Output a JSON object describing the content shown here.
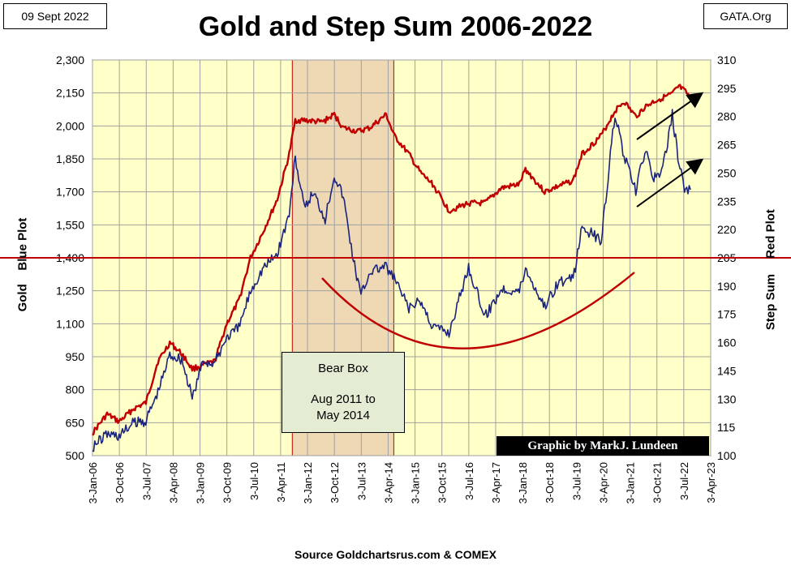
{
  "header": {
    "date": "09 Sept 2022",
    "site": "GATA.Org",
    "title": "Gold and Step Sum 2006-2022"
  },
  "footer": {
    "source": "Source  Goldchartsrus.com  & COMEX",
    "credit": "Graphic by MarkJ. Lundeen"
  },
  "annotation": {
    "box_line1": "Bear Box",
    "box_line2": "Aug 2011 to",
    "box_line3": "May 2014"
  },
  "colors": {
    "plot_bg": "#ffffc8",
    "grid": "#a0a0a0",
    "gold_series": "#1a237e",
    "stepsum_series": "#c00000",
    "bearbox_fill": "#eed9b4",
    "reference_line": "#c00000"
  },
  "chart_data": {
    "type": "line",
    "title": "Gold and Step Sum 2006-2022",
    "ylabel_left": "Gold    Blue Plot",
    "ylabel_right_1": "Red Plot",
    "ylabel_right_2": "Step Sum",
    "y_left_lim": [
      500,
      2300
    ],
    "y_left_ticks": [
      "500",
      "650",
      "800",
      "950",
      "1,100",
      "1,250",
      "1,400",
      "1,550",
      "1,700",
      "1,850",
      "2,000",
      "2,150",
      "2,300"
    ],
    "y_right_lim": [
      100,
      310
    ],
    "y_right_ticks": [
      "100",
      "115",
      "130",
      "145",
      "160",
      "175",
      "190",
      "205",
      "220",
      "235",
      "250",
      "265",
      "280",
      "295",
      "310"
    ],
    "x_ticks": [
      "3-Jan-06",
      "3-Oct-06",
      "3-Jul-07",
      "3-Apr-08",
      "3-Jan-09",
      "3-Oct-09",
      "3-Jul-10",
      "3-Apr-11",
      "3-Jan-12",
      "3-Oct-12",
      "3-Jul-13",
      "3-Apr-14",
      "3-Jan-15",
      "3-Oct-15",
      "3-Jul-16",
      "3-Apr-17",
      "3-Jan-18",
      "3-Oct-18",
      "3-Jul-19",
      "3-Apr-20",
      "3-Jan-21",
      "3-Oct-21",
      "3-Jul-22",
      "3-Apr-23"
    ],
    "x_range": [
      "2006-01-03",
      "2023-04-03"
    ],
    "grid": true,
    "bear_box": {
      "start": "2011-08-01",
      "end": "2014-05-31"
    },
    "reference_line_gold": 1400,
    "series": [
      {
        "axis": "left",
        "points": [
          [
            "2006-01-03",
            540
          ],
          [
            "2006-06-01",
            600
          ],
          [
            "2006-10-01",
            590
          ],
          [
            "2007-03-01",
            650
          ],
          [
            "2007-07-01",
            660
          ],
          [
            "2007-11-01",
            790
          ],
          [
            "2008-03-01",
            960
          ],
          [
            "2008-07-01",
            940
          ],
          [
            "2008-10-15",
            760
          ],
          [
            "2009-02-01",
            930
          ],
          [
            "2009-06-01",
            920
          ],
          [
            "2009-10-01",
            1040
          ],
          [
            "2010-02-01",
            1080
          ],
          [
            "2010-06-01",
            1250
          ],
          [
            "2010-10-01",
            1350
          ],
          [
            "2011-03-01",
            1420
          ],
          [
            "2011-07-01",
            1600
          ],
          [
            "2011-09-01",
            1860
          ],
          [
            "2011-12-01",
            1620
          ],
          [
            "2012-03-01",
            1700
          ],
          [
            "2012-07-01",
            1580
          ],
          [
            "2012-10-01",
            1780
          ],
          [
            "2013-01-01",
            1680
          ],
          [
            "2013-04-15",
            1390
          ],
          [
            "2013-07-01",
            1230
          ],
          [
            "2013-10-01",
            1340
          ],
          [
            "2014-03-01",
            1360
          ],
          [
            "2014-06-01",
            1310
          ],
          [
            "2014-11-01",
            1170
          ],
          [
            "2015-03-01",
            1200
          ],
          [
            "2015-07-01",
            1090
          ],
          [
            "2015-12-15",
            1060
          ],
          [
            "2016-07-01",
            1360
          ],
          [
            "2016-12-15",
            1130
          ],
          [
            "2017-06-01",
            1260
          ],
          [
            "2017-12-01",
            1250
          ],
          [
            "2018-02-01",
            1350
          ],
          [
            "2018-08-15",
            1180
          ],
          [
            "2019-01-01",
            1290
          ],
          [
            "2019-06-01",
            1300
          ],
          [
            "2019-09-01",
            1540
          ],
          [
            "2020-03-15",
            1480
          ],
          [
            "2020-08-01",
            2060
          ],
          [
            "2020-11-01",
            1860
          ],
          [
            "2021-03-01",
            1700
          ],
          [
            "2021-06-01",
            1890
          ],
          [
            "2021-09-01",
            1760
          ],
          [
            "2021-12-01",
            1800
          ],
          [
            "2022-03-08",
            2050
          ],
          [
            "2022-05-15",
            1830
          ],
          [
            "2022-07-20",
            1700
          ],
          [
            "2022-09-09",
            1710
          ]
        ]
      },
      {
        "axis": "right",
        "points": [
          [
            "2006-01-03",
            112
          ],
          [
            "2006-06-01",
            122
          ],
          [
            "2006-10-01",
            118
          ],
          [
            "2007-03-01",
            125
          ],
          [
            "2007-07-01",
            128
          ],
          [
            "2007-11-01",
            150
          ],
          [
            "2008-03-01",
            160
          ],
          [
            "2008-07-01",
            154
          ],
          [
            "2008-10-15",
            146
          ],
          [
            "2009-02-01",
            148
          ],
          [
            "2009-06-01",
            150
          ],
          [
            "2009-10-01",
            170
          ],
          [
            "2010-02-01",
            182
          ],
          [
            "2010-06-01",
            205
          ],
          [
            "2010-10-01",
            218
          ],
          [
            "2011-03-01",
            236
          ],
          [
            "2011-07-01",
            260
          ],
          [
            "2011-09-01",
            278
          ],
          [
            "2011-12-01",
            278
          ],
          [
            "2012-06-01",
            277
          ],
          [
            "2012-10-01",
            281
          ],
          [
            "2013-01-01",
            274
          ],
          [
            "2013-06-01",
            272
          ],
          [
            "2013-10-01",
            274
          ],
          [
            "2014-03-15",
            281
          ],
          [
            "2014-06-01",
            270
          ],
          [
            "2014-11-01",
            260
          ],
          [
            "2015-03-01",
            250
          ],
          [
            "2015-07-01",
            244
          ],
          [
            "2015-12-15",
            230
          ],
          [
            "2016-07-01",
            234
          ],
          [
            "2016-12-15",
            234
          ],
          [
            "2017-06-01",
            242
          ],
          [
            "2017-12-01",
            244
          ],
          [
            "2018-02-01",
            252
          ],
          [
            "2018-08-15",
            240
          ],
          [
            "2019-01-01",
            243
          ],
          [
            "2019-06-01",
            246
          ],
          [
            "2019-09-01",
            260
          ],
          [
            "2020-03-15",
            270
          ],
          [
            "2020-08-01",
            283
          ],
          [
            "2020-11-01",
            288
          ],
          [
            "2021-03-01",
            280
          ],
          [
            "2021-06-01",
            285
          ],
          [
            "2021-09-01",
            288
          ],
          [
            "2021-12-01",
            290
          ],
          [
            "2022-03-08",
            292
          ],
          [
            "2022-05-15",
            296
          ],
          [
            "2022-07-20",
            293
          ],
          [
            "2022-09-09",
            290
          ]
        ]
      }
    ]
  }
}
